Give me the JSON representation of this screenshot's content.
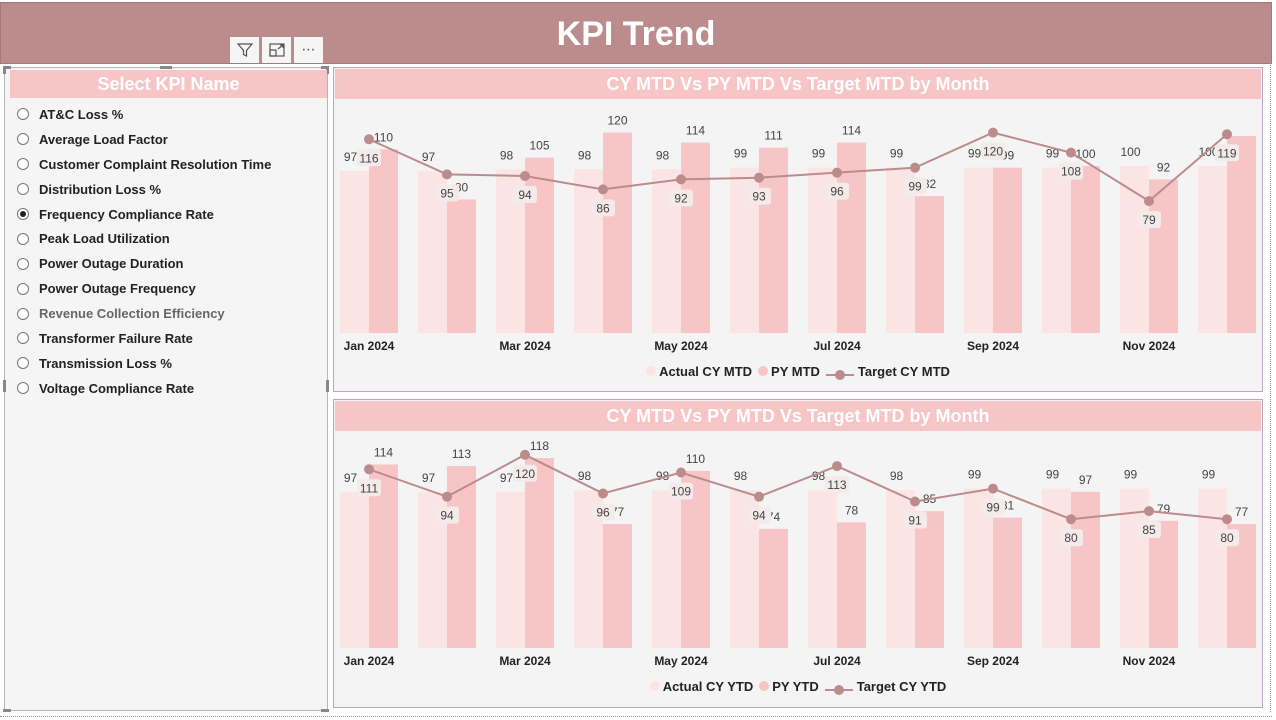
{
  "header": {
    "title": "KPI Trend"
  },
  "toolbar": {
    "icons": [
      "filter-icon",
      "focus-mode-icon",
      "more-options-icon"
    ],
    "more_label": "⋯"
  },
  "slicer": {
    "title": "Select KPI Name",
    "selected": "Frequency Compliance Rate",
    "items": [
      {
        "label": "AT&C Loss %",
        "selected": false
      },
      {
        "label": "Average Load Factor",
        "selected": false
      },
      {
        "label": "Customer Complaint Resolution Time",
        "selected": false
      },
      {
        "label": "Distribution Loss %",
        "selected": false
      },
      {
        "label": "Frequency Compliance Rate",
        "selected": true
      },
      {
        "label": "Peak Load Utilization",
        "selected": false
      },
      {
        "label": "Power Outage Duration",
        "selected": false
      },
      {
        "label": "Power Outage Frequency",
        "selected": false
      },
      {
        "label": "Revenue Collection Efficiency",
        "selected": false
      },
      {
        "label": "Transformer Failure Rate",
        "selected": false
      },
      {
        "label": "Transmission Loss %",
        "selected": false
      },
      {
        "label": "Voltage Compliance Rate",
        "selected": false
      }
    ]
  },
  "colors": {
    "header": "#bc8b8b",
    "actual": "#fbe4e4",
    "py": "#f7c5c5",
    "target": "#bc8b8b"
  },
  "chart_data": [
    {
      "type": "bar+line",
      "title": "CY MTD Vs PY MTD Vs Target MTD by Month",
      "categories": [
        "Jan 2024",
        "Feb 2024",
        "Mar 2024",
        "Apr 2024",
        "May 2024",
        "Jun 2024",
        "Jul 2024",
        "Aug 2024",
        "Sep 2024",
        "Oct 2024",
        "Nov 2024",
        "Dec 2024"
      ],
      "tick_labels": [
        "Jan 2024",
        "",
        "Mar 2024",
        "",
        "May 2024",
        "",
        "Jul 2024",
        "",
        "Sep 2024",
        "",
        "Nov 2024",
        ""
      ],
      "series": [
        {
          "name": "Actual CY MTD",
          "kind": "bar",
          "values": [
            97,
            97,
            98,
            98,
            98,
            99,
            99,
            99,
            99,
            99,
            100,
            100
          ]
        },
        {
          "name": "PY MTD",
          "kind": "bar",
          "values": [
            110,
            80,
            105,
            120,
            114,
            111,
            114,
            82,
            99,
            100,
            92,
            118
          ],
          "labels_shown": [
            true,
            true,
            true,
            true,
            true,
            true,
            true,
            true,
            true,
            true,
            true,
            false
          ]
        },
        {
          "name": "Target CY MTD",
          "kind": "line",
          "values": [
            116,
            95,
            94,
            86,
            92,
            93,
            96,
            99,
            120,
            108,
            79,
            119
          ]
        }
      ],
      "legend": [
        "Actual CY MTD",
        "PY MTD",
        "Target CY MTD"
      ],
      "legend_position": "bottom"
    },
    {
      "type": "bar+line",
      "title": "CY MTD Vs PY MTD Vs Target MTD by Month",
      "categories": [
        "Jan 2024",
        "Feb 2024",
        "Mar 2024",
        "Apr 2024",
        "May 2024",
        "Jun 2024",
        "Jul 2024",
        "Aug 2024",
        "Sep 2024",
        "Oct 2024",
        "Nov 2024",
        "Dec 2024"
      ],
      "tick_labels": [
        "Jan 2024",
        "",
        "Mar 2024",
        "",
        "May 2024",
        "",
        "Jul 2024",
        "",
        "Sep 2024",
        "",
        "Nov 2024",
        ""
      ],
      "series": [
        {
          "name": "Actual CY YTD",
          "kind": "bar",
          "values": [
            97,
            97,
            97,
            98,
            98,
            98,
            98,
            98,
            99,
            99,
            99,
            99
          ]
        },
        {
          "name": "PY YTD",
          "kind": "bar",
          "values": [
            114,
            113,
            118,
            77,
            110,
            74,
            78,
            85,
            81,
            97,
            79,
            77
          ]
        },
        {
          "name": "Target CY YTD",
          "kind": "line",
          "values": [
            111,
            94,
            120,
            96,
            109,
            94,
            113,
            91,
            99,
            80,
            85,
            80
          ]
        }
      ],
      "legend": [
        "Actual CY YTD",
        "PY YTD",
        "Target CY YTD"
      ],
      "legend_position": "bottom"
    }
  ]
}
